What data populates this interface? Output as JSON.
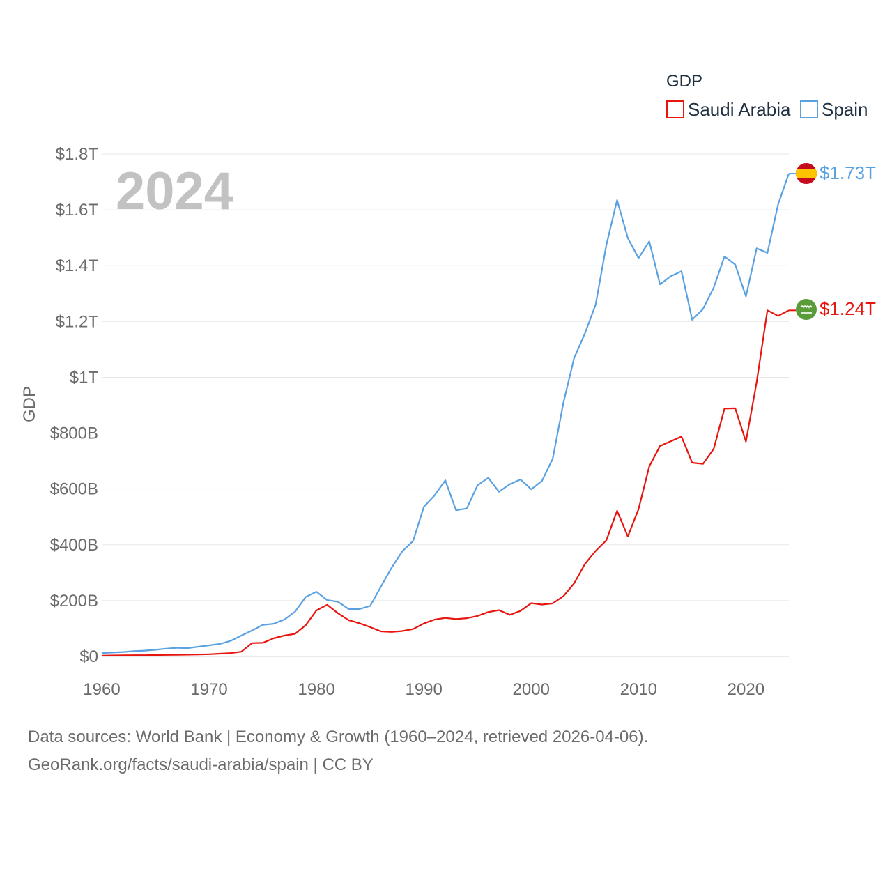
{
  "chart_data": {
    "type": "line",
    "ylabel": "GDP",
    "legend_title": "GDP",
    "year_label": "2024",
    "x": [
      1960,
      1961,
      1962,
      1963,
      1964,
      1965,
      1966,
      1967,
      1968,
      1969,
      1970,
      1971,
      1972,
      1973,
      1974,
      1975,
      1976,
      1977,
      1978,
      1979,
      1980,
      1981,
      1982,
      1983,
      1984,
      1985,
      1986,
      1987,
      1988,
      1989,
      1990,
      1991,
      1992,
      1993,
      1994,
      1995,
      1996,
      1997,
      1998,
      1999,
      2000,
      2001,
      2002,
      2003,
      2004,
      2005,
      2006,
      2007,
      2008,
      2009,
      2010,
      2011,
      2012,
      2013,
      2014,
      2015,
      2016,
      2017,
      2018,
      2019,
      2020,
      2021,
      2022,
      2023,
      2024
    ],
    "xlim": [
      1960,
      2024
    ],
    "ylim": [
      0,
      1800000000000
    ],
    "xticks": [
      {
        "value": 1960,
        "label": "1960"
      },
      {
        "value": 1970,
        "label": "1970"
      },
      {
        "value": 1980,
        "label": "1980"
      },
      {
        "value": 1990,
        "label": "1990"
      },
      {
        "value": 2000,
        "label": "2000"
      },
      {
        "value": 2010,
        "label": "2010"
      },
      {
        "value": 2020,
        "label": "2020"
      }
    ],
    "yticks": [
      {
        "value": 0,
        "label": "$0"
      },
      {
        "value": 200000000000,
        "label": "$200B"
      },
      {
        "value": 400000000000,
        "label": "$400B"
      },
      {
        "value": 600000000000,
        "label": "$600B"
      },
      {
        "value": 800000000000,
        "label": "$800B"
      },
      {
        "value": 1000000000000,
        "label": "$1T"
      },
      {
        "value": 1200000000000,
        "label": "$1.2T"
      },
      {
        "value": 1400000000000,
        "label": "$1.4T"
      },
      {
        "value": 1600000000000,
        "label": "$1.6T"
      },
      {
        "value": 1800000000000,
        "label": "$1.8T"
      }
    ],
    "series": [
      {
        "name": "Saudi Arabia",
        "color": "#e8150f",
        "end_label": "$1.24T",
        "flag_icon": "saudi-arabia-flag-icon",
        "values": [
          3,
          3.5,
          4,
          4.5,
          4.5,
          5,
          5.5,
          6,
          6.5,
          7,
          8,
          10,
          12,
          17,
          48,
          49,
          65,
          75,
          81,
          112,
          165,
          185,
          155,
          130,
          119,
          105,
          90,
          88,
          91,
          98,
          118,
          132,
          138,
          134,
          137,
          145,
          159,
          166,
          149,
          163,
          191,
          186,
          190,
          216,
          262,
          331,
          378,
          416,
          522,
          430,
          528,
          681,
          754,
          771,
          788,
          694,
          690,
          744,
          888,
          889,
          770,
          983,
          1240,
          1220,
          1240
        ],
        "values_unit": "billion USD"
      },
      {
        "name": "Spain",
        "color": "#5aa1e2",
        "end_label": "$1.73T",
        "flag_icon": "spain-flag-icon",
        "values": [
          12,
          14,
          16,
          19,
          21,
          24,
          28,
          31,
          30,
          35,
          40,
          45,
          56,
          75,
          93,
          113,
          117,
          132,
          160,
          213,
          232,
          202,
          196,
          170,
          170,
          181,
          250,
          318,
          377,
          414,
          536,
          577,
          631,
          524,
          530,
          613,
          640,
          590,
          617,
          634,
          599,
          629,
          708,
          909,
          1069,
          1157,
          1260,
          1474,
          1635,
          1499,
          1427,
          1487,
          1333,
          1362,
          1380,
          1206,
          1245,
          1322,
          1433,
          1404,
          1290,
          1462,
          1446,
          1620,
          1730
        ],
        "values_unit": "billion USD"
      }
    ]
  },
  "footer": {
    "line1": "Data sources: World Bank | Economy & Growth (1960–2024, retrieved 2026-04-06).",
    "line2": "GeoRank.org/facts/saudi-arabia/spain | CC BY"
  }
}
